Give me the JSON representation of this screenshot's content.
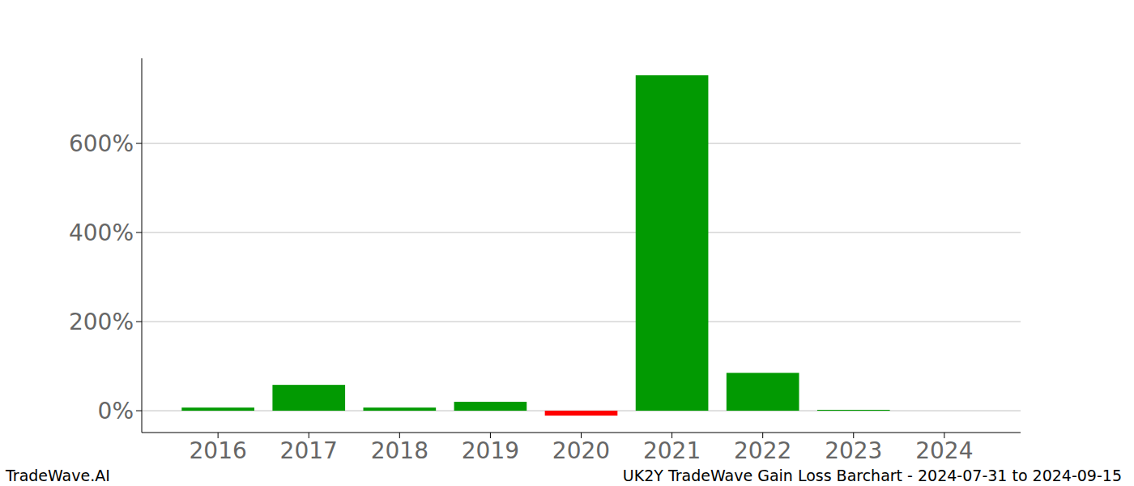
{
  "chart_data": {
    "type": "bar",
    "title": "UK2Y TradeWave Gain Loss Barchart - 2024-07-31 to 2024-09-15",
    "annotations": [
      "TradeWave.AI"
    ],
    "categories": [
      "2016",
      "2017",
      "2018",
      "2019",
      "2020",
      "2021",
      "2022",
      "2023",
      "2024"
    ],
    "values": [
      7,
      58,
      7,
      20,
      -11,
      753,
      85,
      2,
      0
    ],
    "colors": [
      "#029a02",
      "#029a02",
      "#029a02",
      "#029a02",
      "#ff0000",
      "#029a02",
      "#029a02",
      "#029a02",
      "#029a02"
    ],
    "ylim": [
      -49,
      791
    ],
    "yticks": [
      {
        "value": 0,
        "label": "0%"
      },
      {
        "value": 200,
        "label": "200%"
      },
      {
        "value": 400,
        "label": "400%"
      },
      {
        "value": 600,
        "label": "600%"
      }
    ],
    "grid": true
  }
}
